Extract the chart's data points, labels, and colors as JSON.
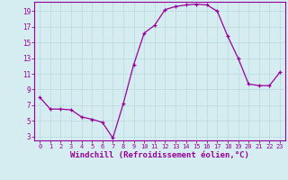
{
  "x": [
    0,
    1,
    2,
    3,
    4,
    5,
    6,
    7,
    8,
    9,
    10,
    11,
    12,
    13,
    14,
    15,
    16,
    17,
    18,
    19,
    20,
    21,
    22,
    23
  ],
  "y": [
    8.0,
    6.5,
    6.5,
    6.4,
    5.5,
    5.2,
    4.8,
    2.8,
    7.2,
    12.2,
    16.2,
    17.2,
    19.2,
    19.6,
    19.8,
    19.9,
    19.8,
    19.0,
    15.8,
    13.0,
    9.7,
    9.5,
    9.5,
    11.2
  ],
  "line_color": "#990099",
  "marker": "+",
  "marker_size": 3,
  "marker_lw": 0.9,
  "line_width": 0.9,
  "xlabel": "Windchill (Refroidissement éolien,°C)",
  "xlabel_fontsize": 6.5,
  "ylabel_ticks": [
    3,
    5,
    7,
    9,
    11,
    13,
    15,
    17,
    19
  ],
  "xtick_labels": [
    "0",
    "1",
    "2",
    "3",
    "4",
    "5",
    "6",
    "7",
    "8",
    "9",
    "10",
    "11",
    "12",
    "13",
    "14",
    "15",
    "16",
    "17",
    "18",
    "19",
    "20",
    "21",
    "22",
    "23"
  ],
  "xlim": [
    -0.5,
    23.5
  ],
  "ylim": [
    2.5,
    20.2
  ],
  "bg_color": "#d5edf0",
  "grid_color": "#b8d8e0",
  "tick_color": "#990099",
  "label_color": "#990099",
  "spine_color": "#990099",
  "ytick_fontsize": 5.5,
  "xtick_fontsize": 5.0
}
